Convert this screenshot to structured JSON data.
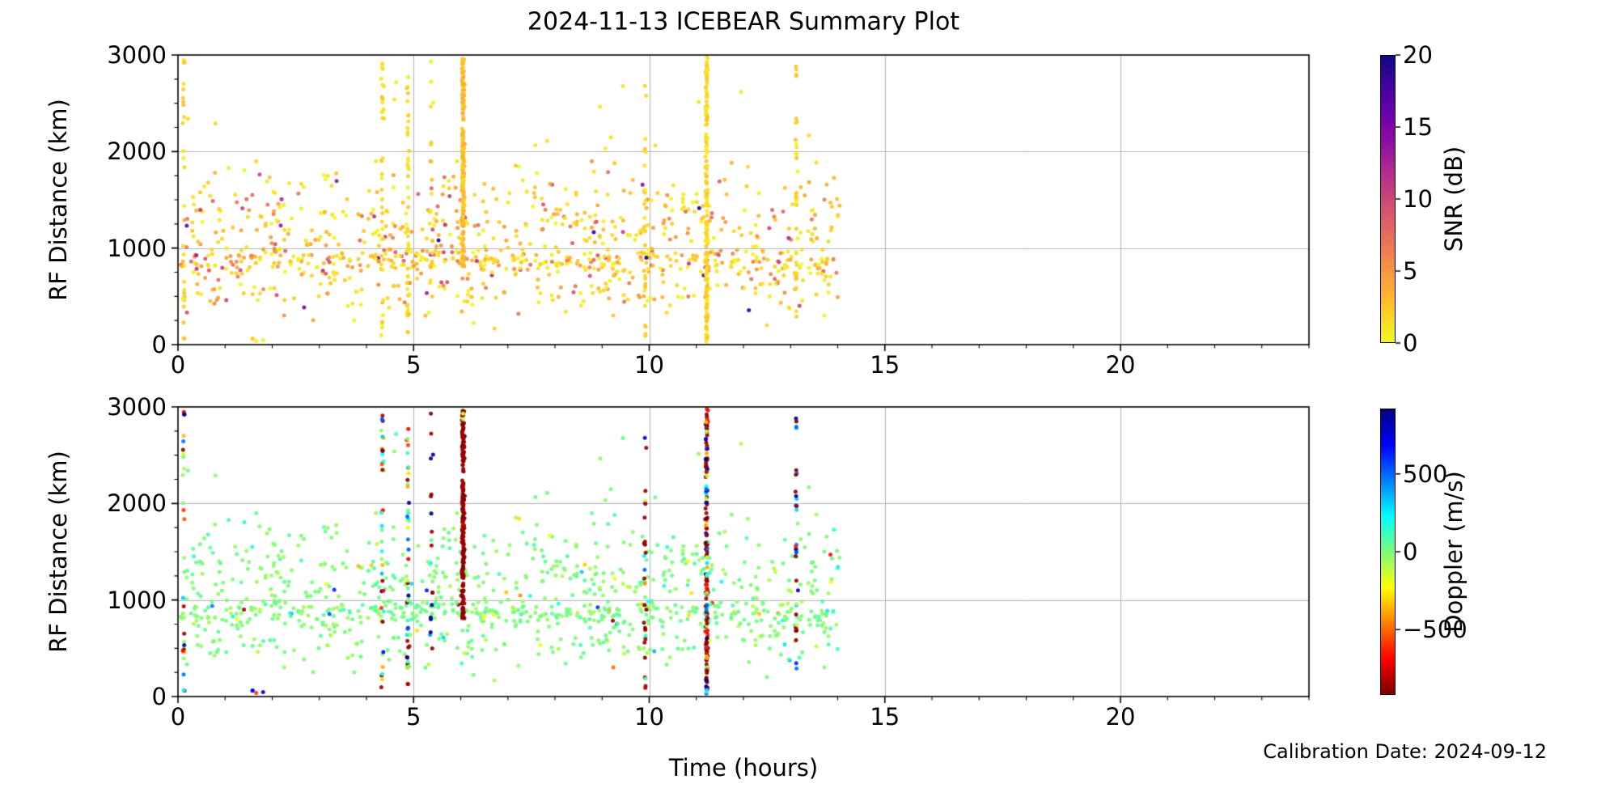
{
  "figure": {
    "background": "#ffffff",
    "colors": {
      "grid": "#b0b0b0",
      "spine": "#000000",
      "text": "#000000"
    }
  },
  "chart_data": {
    "type": "scatter",
    "title": "2024-11-13 ICEBEAR Summary Plot",
    "xlabel": "Time (hours)",
    "annotation": "Calibration Date: 2024-09-12",
    "x_axis": {
      "lim": [
        0,
        24
      ],
      "ticks": [
        0,
        5,
        10,
        15,
        20
      ],
      "tick_labels": [
        "0",
        "5",
        "10",
        "15",
        "20"
      ],
      "minor_step": 1
    },
    "y_axis": {
      "lim": [
        0,
        3000
      ],
      "ticks": [
        0,
        1000,
        2000,
        3000
      ],
      "tick_labels": [
        "0",
        "1000",
        "2000",
        "3000"
      ],
      "minor_step": 250,
      "label": "RF Distance (km)"
    },
    "grid": {
      "x_values": [
        5,
        10,
        15,
        20
      ],
      "y_values": [
        1000,
        2000
      ]
    },
    "panels": [
      {
        "name": "snr-panel",
        "color_by": "snr",
        "colorbar": {
          "label": "SNR (dB)",
          "vmin": 0,
          "vmax": 20,
          "ticks": [
            0,
            5,
            10,
            15,
            20
          ],
          "tick_labels": [
            "0",
            "5",
            "10",
            "15",
            "20"
          ],
          "colormap": "plasma_r",
          "stops": [
            [
              0,
              "#F0F921"
            ],
            [
              0.1,
              "#FCCE25"
            ],
            [
              0.2,
              "#FCA636"
            ],
            [
              0.3,
              "#F1844B"
            ],
            [
              0.4,
              "#E16462"
            ],
            [
              0.5,
              "#CC4778"
            ],
            [
              0.6,
              "#B12A90"
            ],
            [
              0.7,
              "#8F0DA4"
            ],
            [
              0.8,
              "#6A00A8"
            ],
            [
              0.9,
              "#41049D"
            ],
            [
              1,
              "#0D0887"
            ]
          ]
        }
      },
      {
        "name": "doppler-panel",
        "color_by": "doppler",
        "colorbar": {
          "label": "Doppler (m/s)",
          "vmin": -920,
          "vmax": 920,
          "ticks": [
            -500,
            0,
            500
          ],
          "tick_labels": [
            "−500",
            "0",
            "500"
          ],
          "colormap": "jet_r",
          "stops": [
            [
              0,
              "#7F0000"
            ],
            [
              0.125,
              "#FF0000"
            ],
            [
              0.375,
              "#FFFF00"
            ],
            [
              0.5,
              "#7CFC7C"
            ],
            [
              0.625,
              "#00FFFF"
            ],
            [
              0.875,
              "#0000FF"
            ],
            [
              1,
              "#00007F"
            ]
          ]
        }
      }
    ],
    "scatter_spec": {
      "seed": 1113,
      "dot_radius": 2.5,
      "alpha": 0.92,
      "cloud": {
        "count": 980,
        "hour_range": [
          0.05,
          14.05
        ],
        "bands": [
          {
            "weight": 0.5,
            "center": 1270,
            "spread": 285
          },
          {
            "weight": 0.32,
            "center": 860,
            "spread": 70
          },
          {
            "weight": 0.18,
            "center": 560,
            "spread": 125
          }
        ],
        "y_clip": [
          130,
          1900
        ],
        "snr": {
          "exp_scale": 3.0,
          "max": 20
        },
        "doppler": {
          "main_sd": 45,
          "mid_frac": 0.07,
          "mid_sd": 200,
          "outlier_frac": 0.03,
          "outlier_range": [
            -900,
            900
          ]
        }
      },
      "strays": {
        "count": 14,
        "hour_range": [
          0.2,
          13.9
        ],
        "y_range": [
          1900,
          2960
        ],
        "snr_range": [
          0.2,
          1.8
        ],
        "doppler_sd": 45
      },
      "columns": [
        {
          "hour": 0.12,
          "count": 26,
          "y_range": [
            60,
            2950
          ],
          "palette": "mixed"
        },
        {
          "hour": 1.58,
          "count": 2,
          "y_range": [
            20,
            90
          ],
          "palette": "blue"
        },
        {
          "hour": 1.67,
          "count": 1,
          "y_range": [
            30,
            60
          ],
          "palette": "red"
        },
        {
          "hour": 1.8,
          "count": 1,
          "y_range": [
            30,
            70
          ],
          "palette": "blue"
        },
        {
          "hour": 4.33,
          "count": 34,
          "y_range": [
            30,
            2950
          ],
          "palette": "mixed"
        },
        {
          "hour": 4.88,
          "count": 46,
          "y_range": [
            30,
            2950
          ],
          "palette": "mixed"
        },
        {
          "hour": 5.38,
          "count": 16,
          "y_range": [
            100,
            2950
          ],
          "palette": "darkred_navy"
        },
        {
          "hour": 6.05,
          "count": 210,
          "y_range": [
            790,
            2980
          ],
          "y_gap": [
            2240,
            2330
          ],
          "snr_range": [
            1.6,
            4.2
          ],
          "palette": "darkred",
          "extra_points": [
            {
              "y": 2930,
              "doppler": -170,
              "snr": 2.5
            },
            {
              "y": 2875,
              "doppler": -140,
              "snr": 2.0
            }
          ]
        },
        {
          "hour": 9.92,
          "count": 30,
          "y_range": [
            60,
            2950
          ],
          "palette": "darkred_mix"
        },
        {
          "hour": 11.22,
          "count": 170,
          "y_range": [
            30,
            2980
          ],
          "palette": "darkred_mix"
        },
        {
          "hour": 13.12,
          "count": 32,
          "y_range": [
            120,
            2950
          ],
          "palette": "cold_mix"
        }
      ],
      "palettes": {
        "mixed": {
          "darkred_frac": 0.18,
          "choices": [
            -700,
            -550,
            -350,
            -150,
            -60,
            0,
            60,
            180,
            320,
            500,
            700,
            870
          ]
        },
        "darkred": {
          "darkred_frac": 1.0,
          "choices": []
        },
        "darkred_navy": {
          "darkred_frac": 0.65,
          "choices": [
            840,
            880,
            860
          ]
        },
        "darkred_mix": {
          "darkred_frac": 0.52,
          "choices": [
            -650,
            -400,
            -120,
            40,
            250,
            500,
            750,
            880
          ]
        },
        "cold_mix": {
          "darkred_frac": 0.35,
          "choices": [
            320,
            480,
            620,
            760,
            870,
            880,
            -120,
            -650
          ]
        },
        "blue": {
          "darkred_frac": 0,
          "choices": [
            700
          ]
        },
        "red": {
          "darkred_frac": 0,
          "choices": [
            -600
          ]
        }
      },
      "column_snr_range": [
        0.4,
        2.8
      ]
    }
  }
}
